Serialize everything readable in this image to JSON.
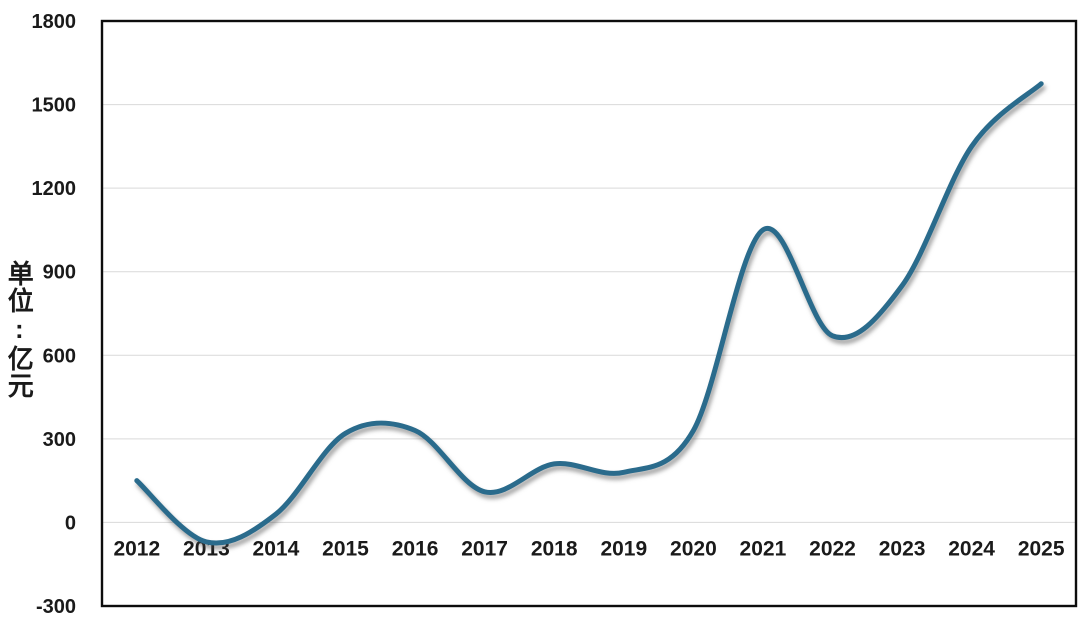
{
  "chart_data": {
    "type": "line",
    "title": "",
    "xlabel": "",
    "ylabel": "单位:亿元",
    "categories": [
      "2012",
      "2013",
      "2014",
      "2015",
      "2016",
      "2017",
      "2018",
      "2019",
      "2020",
      "2021",
      "2022",
      "2023",
      "2024",
      "2025"
    ],
    "series": [
      {
        "name": "",
        "values": [
          150,
          -70,
          30,
          320,
          330,
          110,
          210,
          180,
          330,
          1050,
          670,
          850,
          1350,
          1575
        ]
      }
    ],
    "ylim": [
      -300,
      1800
    ],
    "yticks": [
      1800,
      1500,
      1200,
      900,
      600,
      300,
      0,
      -300
    ],
    "ytick_step": 300,
    "grid": true,
    "legend_position": "none",
    "smooth": true,
    "markers": false,
    "line_color": "#2a6b8c",
    "gridline_color": "#d9d9d9",
    "border_color": "#0d0d0d",
    "text_color": "#1a1a1a",
    "background_color": "#ffffff"
  }
}
